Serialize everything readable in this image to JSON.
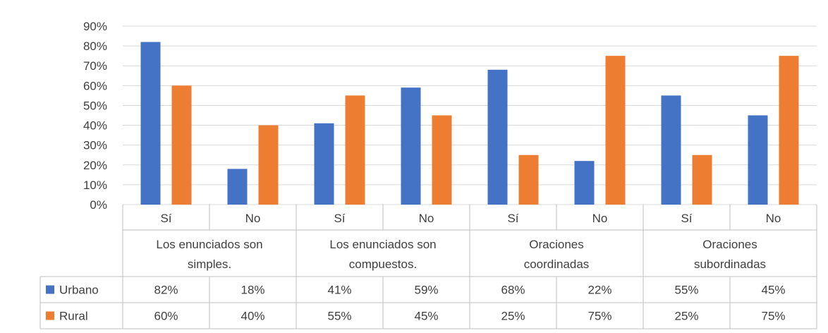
{
  "chart_data": {
    "type": "bar",
    "title": "",
    "ylim": [
      0,
      90
    ],
    "yticks": [
      "0%",
      "10%",
      "20%",
      "30%",
      "40%",
      "50%",
      "60%",
      "70%",
      "80%",
      "90%"
    ],
    "groups": [
      {
        "label_lines": [
          "Los enunciados son",
          "simples."
        ],
        "subcategories": [
          "Sí",
          "No"
        ]
      },
      {
        "label_lines": [
          "Los enunciados son",
          "compuestos."
        ],
        "subcategories": [
          "Sí",
          "No"
        ]
      },
      {
        "label_lines": [
          "Oraciones",
          "coordinadas"
        ],
        "subcategories": [
          "Sí",
          "No"
        ]
      },
      {
        "label_lines": [
          "Oraciones",
          "subordinadas"
        ],
        "subcategories": [
          "Sí",
          "No"
        ]
      }
    ],
    "series": [
      {
        "name": "Urbano",
        "color": "#4472C4",
        "values": [
          82,
          18,
          41,
          59,
          68,
          22,
          55,
          45
        ],
        "labels": [
          "82%",
          "18%",
          "41%",
          "59%",
          "68%",
          "22%",
          "55%",
          "45%"
        ]
      },
      {
        "name": "Rural",
        "color": "#ED7D31",
        "values": [
          60,
          40,
          55,
          45,
          25,
          75,
          25,
          75
        ],
        "labels": [
          "60%",
          "40%",
          "55%",
          "45%",
          "25%",
          "75%",
          "25%",
          "75%"
        ]
      }
    ],
    "grid": true,
    "legend": "data-table"
  }
}
